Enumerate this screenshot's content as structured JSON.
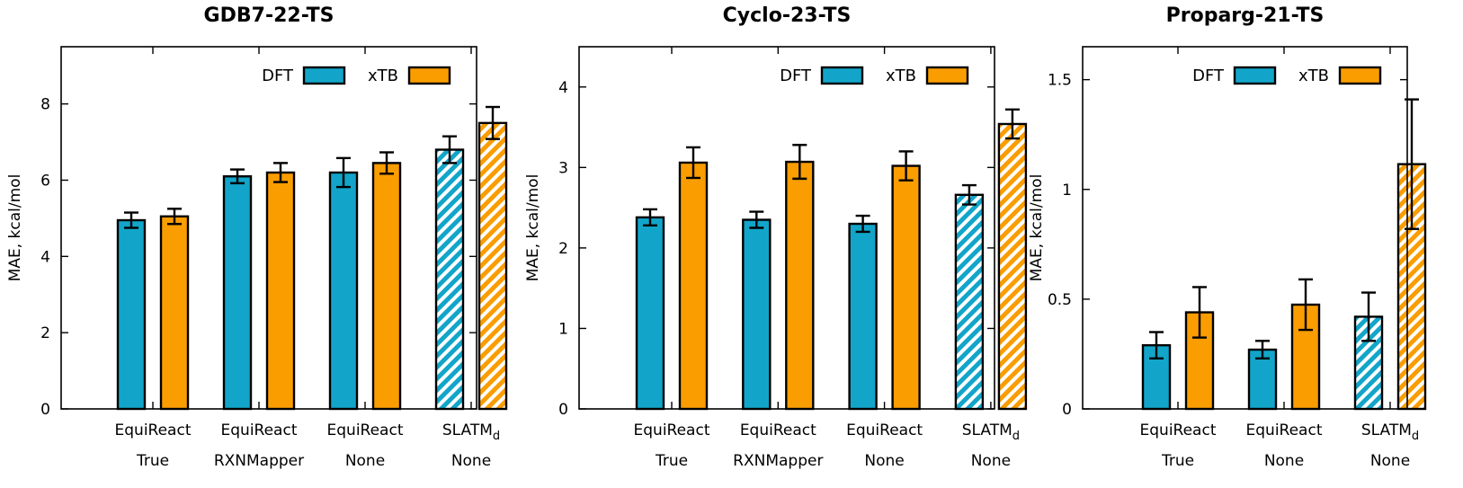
{
  "colors": {
    "dft": "#12a5c9",
    "xtb": "#fa9d00",
    "axis": "#000000"
  },
  "legend": {
    "dft_label": "DFT",
    "xtb_label": "xTB",
    "placement": "top-right"
  },
  "chart_data": [
    {
      "type": "bar",
      "title": "GDB7-22-TS",
      "ylabel": "MAE, kcal/mol",
      "ylim": [
        0,
        9.5
      ],
      "yticks": [
        0,
        2,
        4,
        6,
        8
      ],
      "ytick_labels": [
        "0",
        "2",
        "4",
        "6",
        "8"
      ],
      "categories": [
        {
          "method": "EquiReact",
          "method_sub": "",
          "mapping": "True",
          "hatched": false
        },
        {
          "method": "EquiReact",
          "method_sub": "",
          "mapping": "RXNMapper",
          "hatched": false
        },
        {
          "method": "EquiReact",
          "method_sub": "",
          "mapping": "None",
          "hatched": false
        },
        {
          "method": "SLATM",
          "method_sub": "d",
          "mapping": "None",
          "hatched": true
        }
      ],
      "series": [
        {
          "name": "DFT",
          "values": [
            4.95,
            6.1,
            6.2,
            6.8
          ],
          "errors": [
            0.2,
            0.18,
            0.38,
            0.35
          ]
        },
        {
          "name": "xTB",
          "values": [
            5.05,
            6.2,
            6.45,
            7.5
          ],
          "errors": [
            0.2,
            0.25,
            0.28,
            0.42
          ]
        }
      ]
    },
    {
      "type": "bar",
      "title": "Cyclo-23-TS",
      "ylabel": "MAE, kcal/mol",
      "ylim": [
        0,
        4.5
      ],
      "yticks": [
        0,
        1,
        2,
        3,
        4
      ],
      "ytick_labels": [
        "0",
        "1",
        "2",
        "3",
        "4"
      ],
      "categories": [
        {
          "method": "EquiReact",
          "method_sub": "",
          "mapping": "True",
          "hatched": false
        },
        {
          "method": "EquiReact",
          "method_sub": "",
          "mapping": "RXNMapper",
          "hatched": false
        },
        {
          "method": "EquiReact",
          "method_sub": "",
          "mapping": "None",
          "hatched": false
        },
        {
          "method": "SLATM",
          "method_sub": "d",
          "mapping": "None",
          "hatched": true
        }
      ],
      "series": [
        {
          "name": "DFT",
          "values": [
            2.38,
            2.35,
            2.3,
            2.66
          ],
          "errors": [
            0.1,
            0.1,
            0.1,
            0.12
          ]
        },
        {
          "name": "xTB",
          "values": [
            3.06,
            3.07,
            3.02,
            3.54
          ],
          "errors": [
            0.19,
            0.21,
            0.18,
            0.18
          ]
        }
      ]
    },
    {
      "type": "bar",
      "title": "Proparg-21-TS",
      "ylabel": "MAE, kcal/mol",
      "ylim": [
        0,
        1.65
      ],
      "yticks": [
        0,
        0.5,
        1,
        1.5
      ],
      "ytick_labels": [
        "0",
        "0.5",
        "1",
        "1.5"
      ],
      "categories": [
        {
          "method": "EquiReact",
          "method_sub": "",
          "mapping": "True",
          "hatched": false
        },
        {
          "method": "EquiReact",
          "method_sub": "",
          "mapping": "None",
          "hatched": false
        },
        {
          "method": "SLATM",
          "method_sub": "d",
          "mapping": "None",
          "hatched": true
        }
      ],
      "series": [
        {
          "name": "DFT",
          "values": [
            0.29,
            0.27,
            0.42
          ],
          "errors": [
            0.06,
            0.04,
            0.11
          ]
        },
        {
          "name": "xTB",
          "values": [
            0.44,
            0.475,
            1.115
          ],
          "errors": [
            0.115,
            0.115,
            0.295
          ]
        }
      ]
    }
  ]
}
